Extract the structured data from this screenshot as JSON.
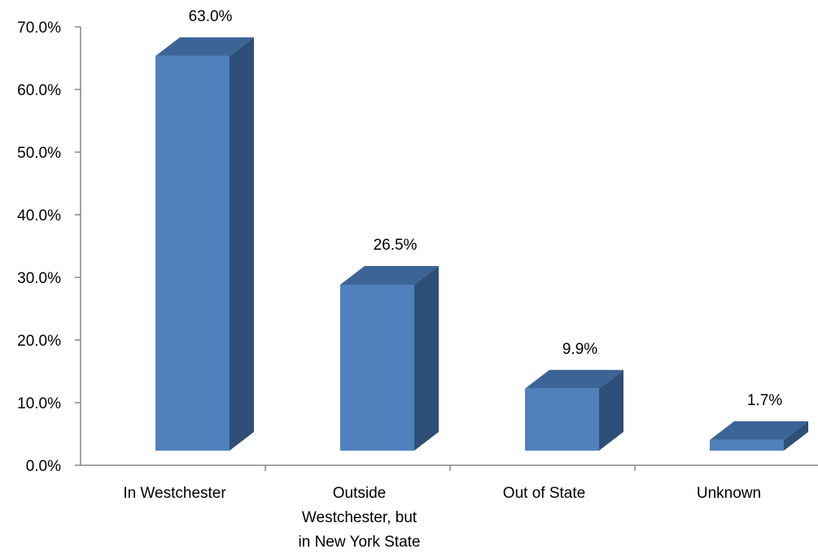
{
  "chart_data": {
    "type": "bar",
    "style": "3d-column",
    "title": "",
    "xlabel": "",
    "ylabel": "",
    "categories": [
      [
        "In Westchester"
      ],
      [
        "Outside",
        "Westchester, but",
        "in New York State"
      ],
      [
        "Out of State"
      ],
      [
        "Unknown"
      ]
    ],
    "values": [
      63.0,
      26.5,
      9.9,
      1.7
    ],
    "data_labels": [
      "63.0%",
      "26.5%",
      "9.9%",
      "1.7%"
    ],
    "ylim": [
      0,
      70
    ],
    "yticks": [
      0,
      10,
      20,
      30,
      40,
      50,
      60,
      70
    ],
    "ytick_labels": [
      "0.0%",
      "10.0%",
      "20.0%",
      "30.0%",
      "40.0%",
      "50.0%",
      "60.0%",
      "70.0%"
    ],
    "grid": false,
    "legend": "none",
    "colors": {
      "front": "#4F81BD",
      "side": "#2E4F78",
      "top": "#3C6496",
      "axis": "#868686"
    }
  }
}
